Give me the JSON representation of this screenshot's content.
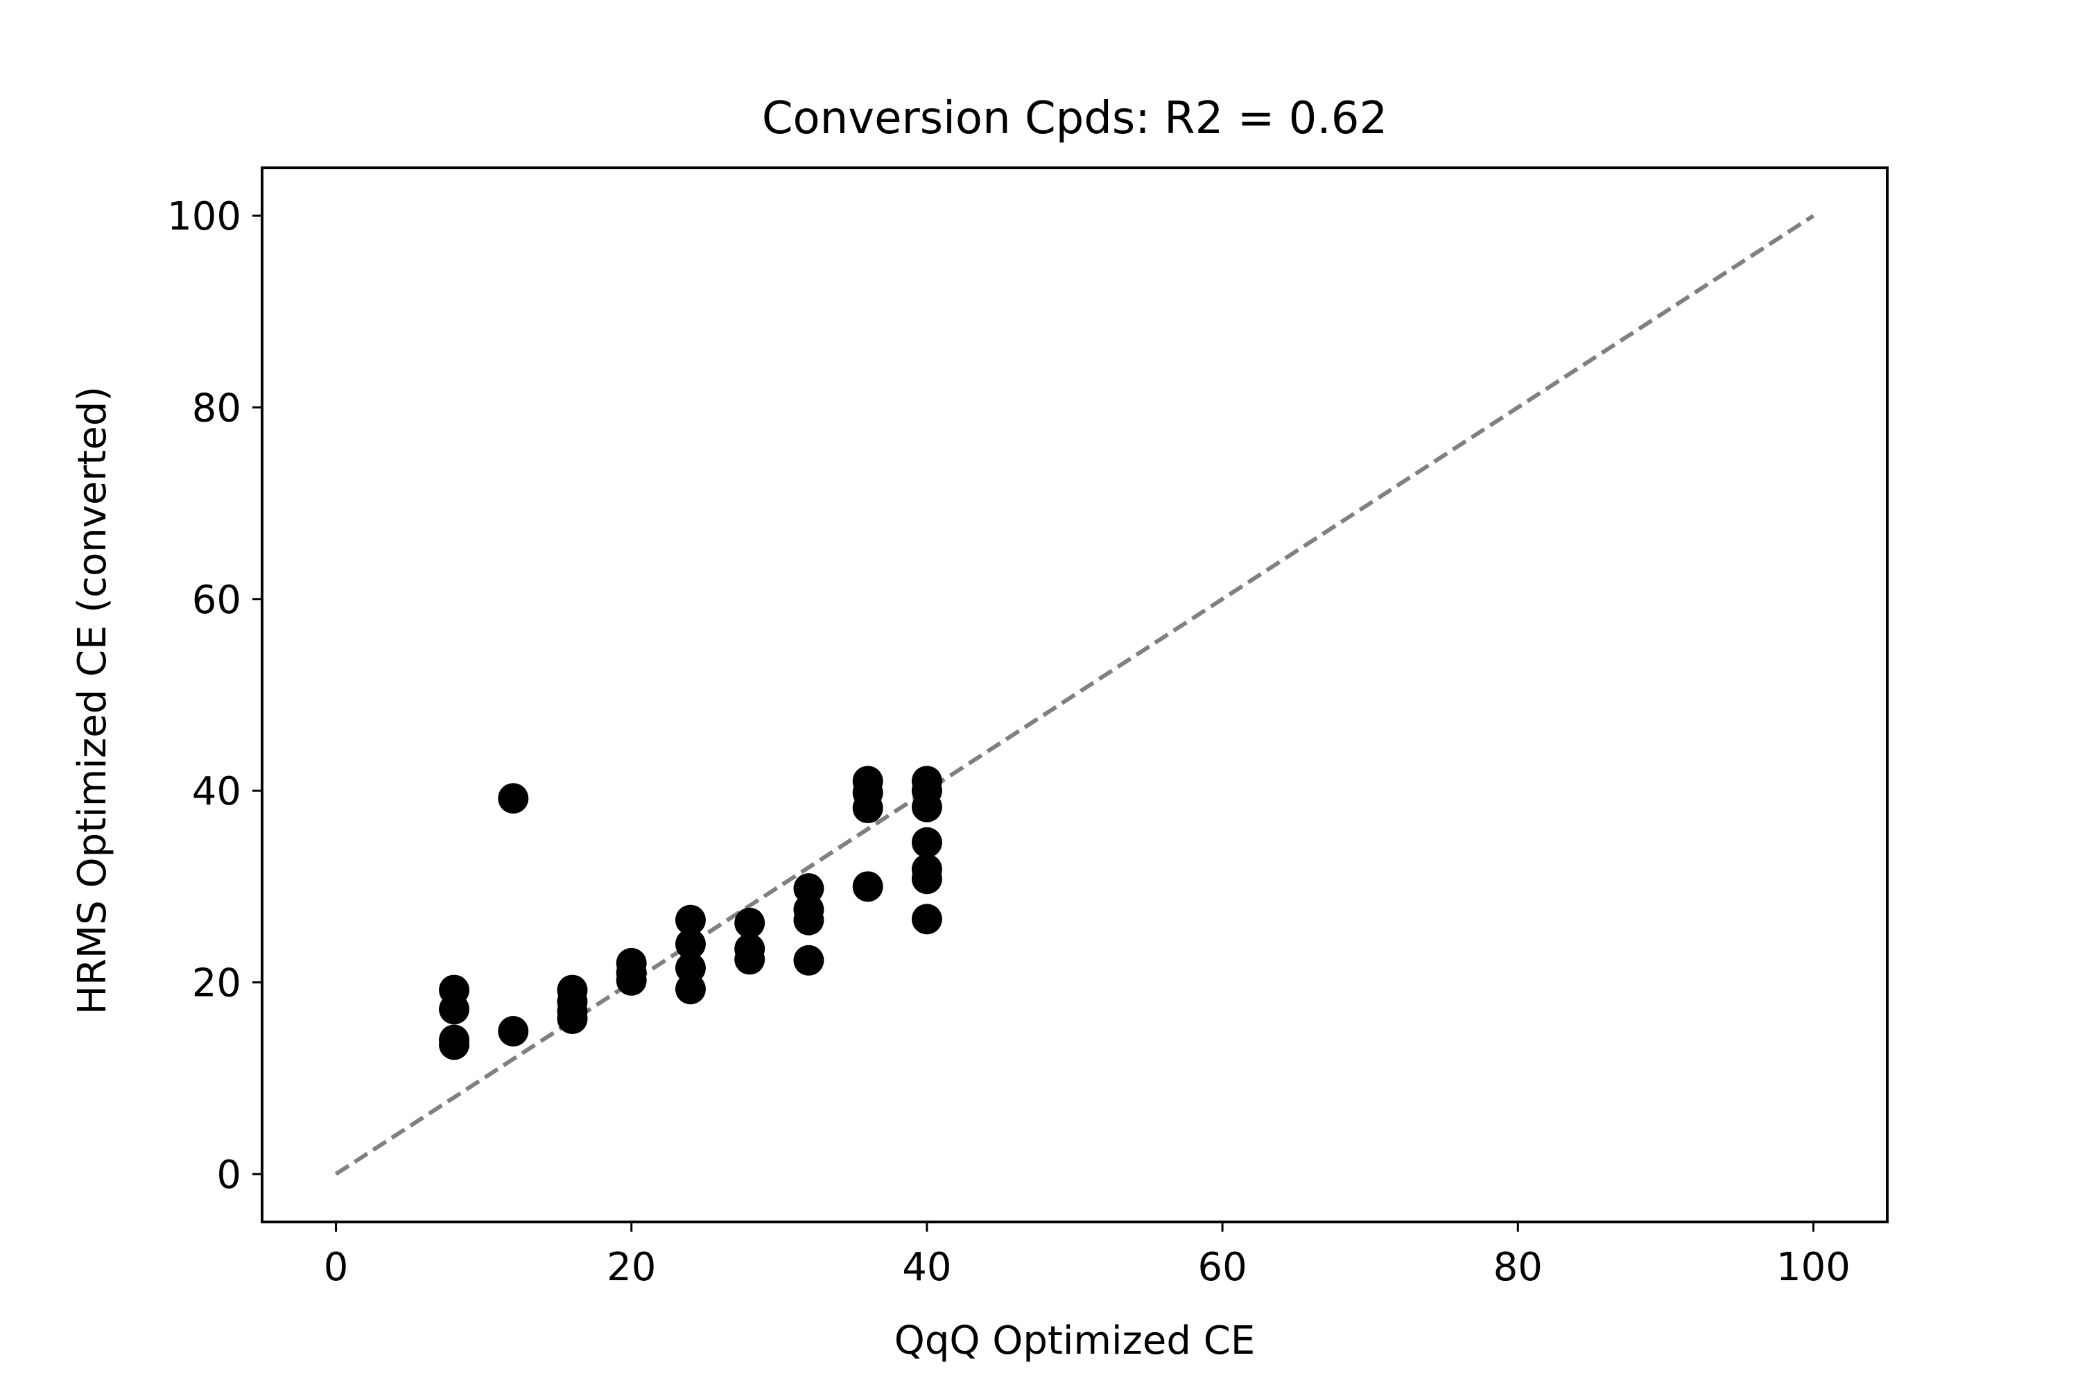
{
  "chart_data": {
    "type": "scatter",
    "title": "Conversion Cpds: R2 = 0.62",
    "xlabel": "QqQ Optimized CE",
    "ylabel": "HRMS Optimized CE (converted)",
    "xlim": [
      -5,
      105
    ],
    "ylim": [
      -5,
      105
    ],
    "x_ticks": [
      0,
      20,
      40,
      60,
      80,
      100
    ],
    "y_ticks": [
      0,
      20,
      40,
      60,
      80,
      100
    ],
    "grid": false,
    "colors": {
      "points": "#000000",
      "reference_line": "#808080",
      "axes": "#000000"
    },
    "series": [
      {
        "points": [
          {
            "x": 8,
            "y": 19.2
          },
          {
            "x": 8,
            "y": 17.2
          },
          {
            "x": 8,
            "y": 14.0
          },
          {
            "x": 8,
            "y": 13.5
          },
          {
            "x": 12,
            "y": 39.2
          },
          {
            "x": 12,
            "y": 14.9
          },
          {
            "x": 16,
            "y": 19.2
          },
          {
            "x": 16,
            "y": 18.0
          },
          {
            "x": 16,
            "y": 17.0
          },
          {
            "x": 16,
            "y": 16.2
          },
          {
            "x": 20,
            "y": 22.0
          },
          {
            "x": 20,
            "y": 21.0
          },
          {
            "x": 20,
            "y": 20.2
          },
          {
            "x": 24,
            "y": 26.5
          },
          {
            "x": 24,
            "y": 24.0
          },
          {
            "x": 24,
            "y": 21.5
          },
          {
            "x": 24,
            "y": 19.3
          },
          {
            "x": 28,
            "y": 26.2
          },
          {
            "x": 28,
            "y": 23.5
          },
          {
            "x": 28,
            "y": 22.4
          },
          {
            "x": 32,
            "y": 29.8
          },
          {
            "x": 32,
            "y": 27.6
          },
          {
            "x": 32,
            "y": 26.5
          },
          {
            "x": 32,
            "y": 22.3
          },
          {
            "x": 36,
            "y": 41.0
          },
          {
            "x": 36,
            "y": 39.8
          },
          {
            "x": 36,
            "y": 38.2
          },
          {
            "x": 36,
            "y": 30.0
          },
          {
            "x": 40,
            "y": 41.0
          },
          {
            "x": 40,
            "y": 40.0
          },
          {
            "x": 40,
            "y": 38.3
          },
          {
            "x": 40,
            "y": 34.6
          },
          {
            "x": 40,
            "y": 31.8
          },
          {
            "x": 40,
            "y": 30.8
          },
          {
            "x": 40,
            "y": 26.6
          }
        ]
      }
    ],
    "reference_line": {
      "style": "dashed",
      "from": [
        0,
        0
      ],
      "to": [
        100,
        100
      ]
    }
  }
}
